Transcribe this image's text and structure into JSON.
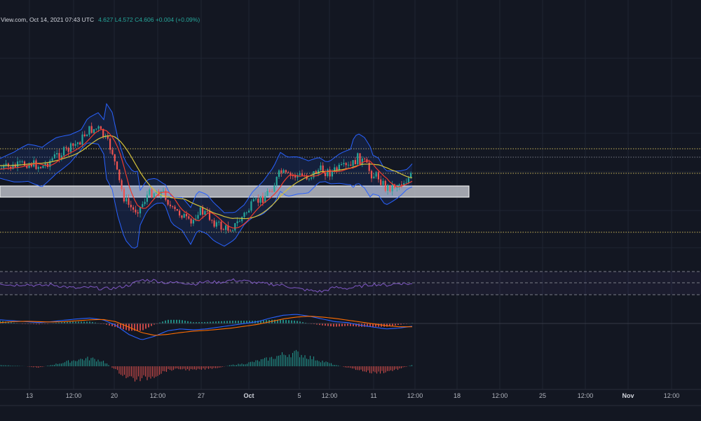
{
  "header": {
    "source_fragment": "View.com, Oct 14, 2021 07:43 UTC",
    "ohlc_fragment": "4.627  L4.572  C4.606  +0.004 (+0.09%)"
  },
  "colors": {
    "background": "#131722",
    "grid": "#1f2432",
    "up": "#26a69a",
    "down": "#ef5350",
    "bb": "#2962ff",
    "bb_fill": "#2962ff22",
    "ema_red": "#ef3b2c",
    "ema_yellow": "#d4c23a",
    "rsi": "#7e57c2",
    "macd": "#2962ff",
    "signal": "#ff6d00",
    "level_dotted": "#c9b458",
    "zone": "#d1d4dc"
  },
  "chart_data": [
    {
      "type": "candlestick",
      "pane": "price",
      "title": "",
      "x_tick_labels": [
        "13",
        "12:00",
        "20",
        "12:00",
        "27",
        "Oct",
        "5",
        "12:00",
        "11",
        "12:00",
        "18",
        "12:00",
        "25",
        "12:00",
        "Nov",
        "12:00"
      ],
      "bold_ticks": [
        "Oct",
        "Nov"
      ],
      "candles_visible": true,
      "overlays": [
        "Bollinger Bands",
        "EMA (red)",
        "MA (yellow)"
      ],
      "support_zone": {
        "label": "",
        "shown": true
      },
      "levels": [
        {
          "style": "dotted"
        },
        {
          "style": "dotted"
        },
        {
          "style": "dotted"
        }
      ],
      "last_close": 4.606,
      "low": 4.572,
      "change": "+0.004 (+0.09%)"
    },
    {
      "type": "line",
      "pane": "rsi",
      "bands": "dashed upper/middle/lower",
      "shape": [
        0.55,
        0.45,
        0.5,
        0.42,
        0.48,
        0.38,
        0.3,
        0.35,
        0.28,
        0.32,
        0.45,
        0.7,
        0.68,
        0.55,
        0.6,
        0.5,
        0.62,
        0.58,
        0.7,
        0.65,
        0.55,
        0.5,
        0.45,
        0.3,
        0.2,
        0.15,
        0.35,
        0.3,
        0.4,
        0.5,
        0.45,
        0.55,
        0.5
      ]
    },
    {
      "type": "bar",
      "pane": "macd",
      "series": [
        {
          "values": [
            0.2,
            0.15,
            0.1,
            0.05,
            0.1,
            0.18,
            0.25,
            0.3,
            0.2,
            -0.1,
            -0.6,
            -0.9,
            -0.7,
            -0.4,
            -0.3,
            -0.35,
            -0.3,
            -0.2,
            -0.1,
            0,
            0.1,
            0.3,
            0.45,
            0.5,
            0.4,
            0.25,
            0.1,
            0.05,
            -0.1,
            -0.2,
            -0.3,
            -0.25,
            -0.15
          ]
        },
        {
          "values": [
            0.05,
            0.1,
            0.12,
            0.1,
            0.08,
            0.1,
            0.15,
            0.2,
            0.22,
            0.1,
            -0.2,
            -0.5,
            -0.65,
            -0.6,
            -0.5,
            -0.42,
            -0.38,
            -0.32,
            -0.25,
            -0.15,
            -0.05,
            0.1,
            0.25,
            0.35,
            0.4,
            0.35,
            0.28,
            0.18,
            0.08,
            -0.02,
            -0.12,
            -0.18,
            -0.18
          ]
        }
      ]
    },
    {
      "type": "bar",
      "pane": "momentum",
      "values": [
        0.1,
        0.05,
        0.0,
        -0.1,
        0.1,
        0.3,
        0.5,
        0.6,
        0.4,
        -0.3,
        -0.9,
        -1.0,
        -0.7,
        -0.3,
        -0.2,
        -0.3,
        -0.2,
        -0.1,
        0.1,
        0.2,
        0.4,
        0.6,
        0.9,
        1.0,
        0.7,
        0.4,
        0.1,
        -0.1,
        -0.3,
        -0.5,
        -0.4,
        -0.2,
        0.1
      ]
    }
  ]
}
